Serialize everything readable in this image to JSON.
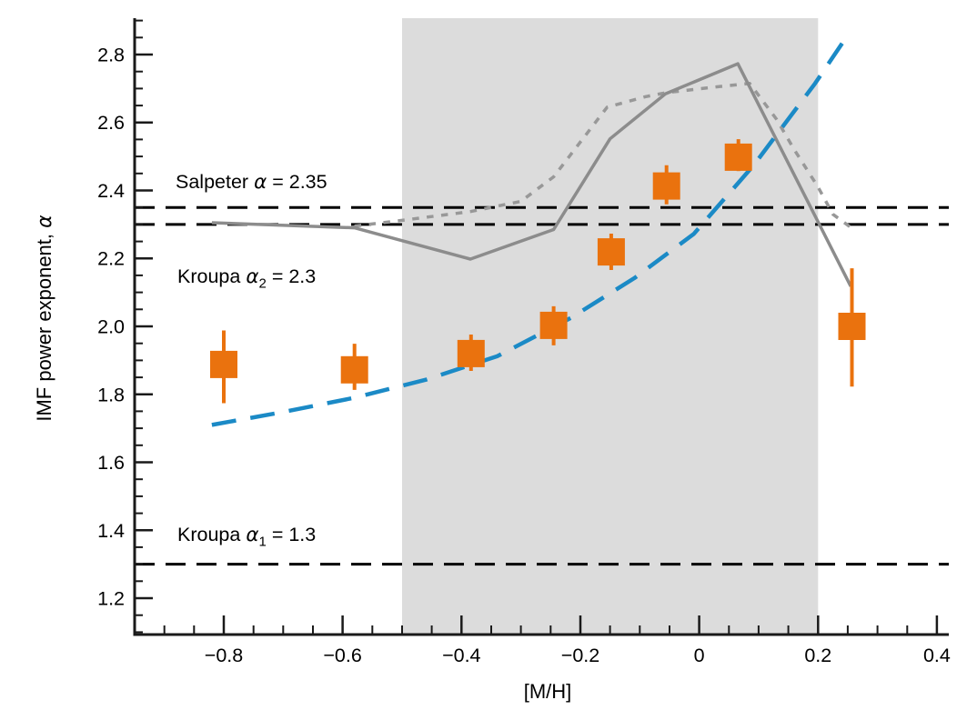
{
  "chart_data": {
    "type": "scatter",
    "title": "",
    "xlabel": "[M/H]",
    "ylabel": "IMF power exponent, α",
    "ylabel_parts": {
      "text": "IMF power exponent, ",
      "alpha": "α"
    },
    "xlim": [
      -0.95,
      0.42
    ],
    "ylim": [
      1.093,
      2.907
    ],
    "grid": false,
    "legend": false,
    "x_major_ticks": [
      -0.8,
      -0.6,
      -0.4,
      -0.2,
      0,
      0.2,
      0.4
    ],
    "x_tick_labels": [
      "−0.8",
      "−0.6",
      "−0.4",
      "−0.2",
      "0",
      "0.2",
      "0.4"
    ],
    "x_minor_step": 0.05,
    "y_major_ticks": [
      1.2,
      1.4,
      1.6,
      1.8,
      2.0,
      2.2,
      2.4,
      2.6,
      2.8
    ],
    "y_tick_labels": [
      "1.2",
      "1.4",
      "1.6",
      "1.8",
      "2.0",
      "2.2",
      "2.4",
      "2.6",
      "2.8"
    ],
    "y_minor_step": 0.05,
    "shaded_band": {
      "x0": -0.5,
      "x1": 0.2,
      "color": "#dcdcdc"
    },
    "reference_lines": [
      {
        "name": "salpeter",
        "value": 2.35,
        "color": "#000000",
        "style": "dashed",
        "label": "Salpeter α = 2.35",
        "label_parts": {
          "pre": "Salpeter ",
          "alpha": "α",
          "sub": "",
          "post": " = 2.35"
        }
      },
      {
        "name": "kroupa-alpha2",
        "value": 2.3,
        "color": "#000000",
        "style": "dashed",
        "label": "Kroupa α2 = 2.3",
        "label_parts": {
          "pre": "Kroupa ",
          "alpha": "α",
          "sub": "2",
          "post": " = 2.3"
        }
      },
      {
        "name": "kroupa-alpha1",
        "value": 1.3,
        "color": "#000000",
        "style": "dashed",
        "label": "Kroupa α1 = 1.3",
        "label_parts": {
          "pre": "Kroupa ",
          "alpha": "α",
          "sub": "1",
          "post": " = 1.3"
        }
      }
    ],
    "series": [
      {
        "name": "gray-dotted-model",
        "type": "line",
        "style": "dotted",
        "color": "#989898",
        "width": 3.5,
        "points": [
          [
            -0.58,
            2.295
          ],
          [
            -0.5,
            2.312
          ],
          [
            -0.385,
            2.338
          ],
          [
            -0.3,
            2.368
          ],
          [
            -0.245,
            2.44
          ],
          [
            -0.155,
            2.645
          ],
          [
            -0.09,
            2.676
          ],
          [
            -0.055,
            2.688
          ],
          [
            0.03,
            2.705
          ],
          [
            0.085,
            2.715
          ],
          [
            0.13,
            2.61
          ],
          [
            0.16,
            2.52
          ],
          [
            0.2,
            2.41
          ],
          [
            0.225,
            2.33
          ],
          [
            0.26,
            2.285
          ]
        ]
      },
      {
        "name": "gray-solid-model",
        "type": "line",
        "style": "solid",
        "color": "#8c8c8c",
        "width": 3.5,
        "points": [
          [
            -0.82,
            2.305
          ],
          [
            -0.58,
            2.29
          ],
          [
            -0.385,
            2.198
          ],
          [
            -0.245,
            2.285
          ],
          [
            -0.15,
            2.552
          ],
          [
            -0.057,
            2.684
          ],
          [
            0.065,
            2.773
          ],
          [
            0.255,
            2.118
          ]
        ]
      },
      {
        "name": "blue-dashed-model",
        "type": "line",
        "style": "long-dash",
        "color": "#1b8ac6",
        "width": 4.5,
        "points": [
          [
            -0.82,
            1.71
          ],
          [
            -0.7,
            1.748
          ],
          [
            -0.58,
            1.79
          ],
          [
            -0.46,
            1.843
          ],
          [
            -0.34,
            1.912
          ],
          [
            -0.216,
            2.025
          ],
          [
            -0.109,
            2.142
          ],
          [
            -0.009,
            2.272
          ],
          [
            0.092,
            2.475
          ],
          [
            0.195,
            2.715
          ],
          [
            0.253,
            2.865
          ]
        ]
      },
      {
        "name": "measured-imf-slope",
        "type": "scatter",
        "marker": "square",
        "color": "#ea720e",
        "marker_size": 30,
        "points": [
          {
            "x": -0.8,
            "y": 1.888,
            "err_up": 0.1,
            "err_down": 0.114
          },
          {
            "x": -0.58,
            "y": 1.872,
            "err_up": 0.077,
            "err_down": 0.059
          },
          {
            "x": -0.384,
            "y": 1.92,
            "err_up": 0.056,
            "err_down": 0.051
          },
          {
            "x": -0.245,
            "y": 2.003,
            "err_up": 0.056,
            "err_down": 0.059
          },
          {
            "x": -0.148,
            "y": 2.219,
            "err_up": 0.054,
            "err_down": 0.053
          },
          {
            "x": -0.055,
            "y": 2.413,
            "err_up": 0.061,
            "err_down": 0.054
          },
          {
            "x": 0.066,
            "y": 2.498,
            "err_up": 0.053,
            "err_down": 0.041
          },
          {
            "x": 0.257,
            "y": 2.0,
            "err_up": 0.171,
            "err_down": 0.177
          }
        ]
      }
    ]
  }
}
